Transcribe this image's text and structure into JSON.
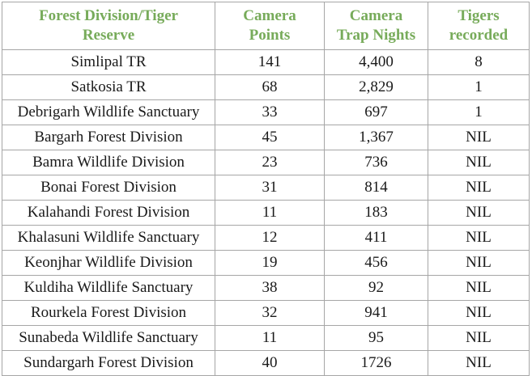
{
  "table": {
    "headers": [
      {
        "line1": "Forest Division/Tiger",
        "line2": "Reserve"
      },
      {
        "line1": "Camera",
        "line2": "Points"
      },
      {
        "line1": "Camera",
        "line2": "Trap Nights"
      },
      {
        "line1": "Tigers",
        "line2": "recorded"
      }
    ],
    "rows": [
      [
        "Simlipal TR",
        "141",
        "4,400",
        "8"
      ],
      [
        "Satkosia TR",
        "68",
        "2,829",
        "1"
      ],
      [
        "Debrigarh Wildlife Sanctuary",
        "33",
        "697",
        "1"
      ],
      [
        "Bargarh Forest Division",
        "45",
        "1,367",
        "NIL"
      ],
      [
        "Bamra Wildlife Division",
        "23",
        "736",
        "NIL"
      ],
      [
        "Bonai Forest Division",
        "31",
        "814",
        "NIL"
      ],
      [
        "Kalahandi Forest Division",
        "11",
        "183",
        "NIL"
      ],
      [
        "Khalasuni Wildlife Sanctuary",
        "12",
        "411",
        "NIL"
      ],
      [
        "Keonjhar Wildlife Division",
        "19",
        "456",
        "NIL"
      ],
      [
        "Kuldiha Wildlife Sanctuary",
        "38",
        "92",
        "NIL"
      ],
      [
        "Rourkela Forest Division",
        "32",
        "941",
        "NIL"
      ],
      [
        "Sunabeda Wildlife Sanctuary",
        "11",
        "95",
        "NIL"
      ],
      [
        "Sundargarh Forest Division",
        "40",
        "1726",
        "NIL"
      ]
    ]
  },
  "colors": {
    "header_text": "#77ab5a",
    "border": "#a6a6a6",
    "body_text": "#1a1a1a"
  }
}
